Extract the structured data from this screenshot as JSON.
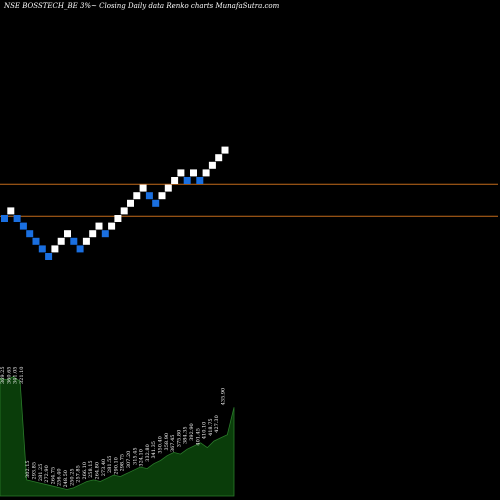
{
  "chart_data": {
    "type": "renko",
    "title": "NSE BOSSTECH_BE 3%~   Closing Daily data  Renko  charts MunafaSutra.com",
    "colors": {
      "up_brick": "#ffffff",
      "down_brick": "#1a6fe0",
      "reference_lines": "#c26a1a",
      "volume_fill": "#0a3d0a",
      "volume_line": "#2a7a2a",
      "background": "#000000"
    },
    "bricks": [
      {
        "dir": "down",
        "level": 0
      },
      {
        "dir": "up",
        "level": 1
      },
      {
        "dir": "down",
        "level": 0
      },
      {
        "dir": "down",
        "level": -1
      },
      {
        "dir": "down",
        "level": -2
      },
      {
        "dir": "down",
        "level": -3
      },
      {
        "dir": "down",
        "level": -4
      },
      {
        "dir": "down",
        "level": -5
      },
      {
        "dir": "up",
        "level": -4
      },
      {
        "dir": "up",
        "level": -3
      },
      {
        "dir": "up",
        "level": -2
      },
      {
        "dir": "down",
        "level": -3
      },
      {
        "dir": "down",
        "level": -4
      },
      {
        "dir": "up",
        "level": -3
      },
      {
        "dir": "up",
        "level": -2
      },
      {
        "dir": "up",
        "level": -1
      },
      {
        "dir": "down",
        "level": -2
      },
      {
        "dir": "up",
        "level": -1
      },
      {
        "dir": "up",
        "level": 0
      },
      {
        "dir": "up",
        "level": 1
      },
      {
        "dir": "up",
        "level": 2
      },
      {
        "dir": "up",
        "level": 3
      },
      {
        "dir": "up",
        "level": 4
      },
      {
        "dir": "down",
        "level": 3
      },
      {
        "dir": "down",
        "level": 2
      },
      {
        "dir": "up",
        "level": 3
      },
      {
        "dir": "up",
        "level": 4
      },
      {
        "dir": "up",
        "level": 5
      },
      {
        "dir": "up",
        "level": 6
      },
      {
        "dir": "down",
        "level": 5
      },
      {
        "dir": "up",
        "level": 6
      },
      {
        "dir": "down",
        "level": 5
      },
      {
        "dir": "up",
        "level": 6
      },
      {
        "dir": "up",
        "level": 7
      },
      {
        "dir": "up",
        "level": 8
      },
      {
        "dir": "up",
        "level": 9
      }
    ],
    "reference_lines": [
      {
        "level": 4.5
      },
      {
        "level": 0.3
      }
    ],
    "volume_labels": [
      "369.25",
      "360.65",
      "341.05",
      "321.10",
      "302.15",
      "293.85",
      "281.25",
      "272.90",
      "264.75",
      "256.40",
      "248.50",
      "250.25",
      "257.85",
      "266.10",
      "258.15",
      "264.80",
      "273.40",
      "281.55",
      "290.10",
      "298.75",
      "307.20",
      "315.45",
      "324.10",
      "332.80",
      "341.35",
      "350.40",
      "358.90",
      "367.45",
      "375.80",
      "384.35",
      "392.90",
      "401.45",
      "410.10",
      "418.75",
      "427.30",
      "435.90"
    ],
    "volume_profile": [
      0.73,
      0.72,
      0.74,
      0.71,
      0.1,
      0.09,
      0.08,
      0.07,
      0.06,
      0.05,
      0.04,
      0.05,
      0.07,
      0.09,
      0.1,
      0.09,
      0.11,
      0.13,
      0.12,
      0.14,
      0.16,
      0.18,
      0.17,
      0.2,
      0.22,
      0.25,
      0.27,
      0.26,
      0.29,
      0.31,
      0.33,
      0.3,
      0.34,
      0.36,
      0.38,
      0.55
    ]
  }
}
